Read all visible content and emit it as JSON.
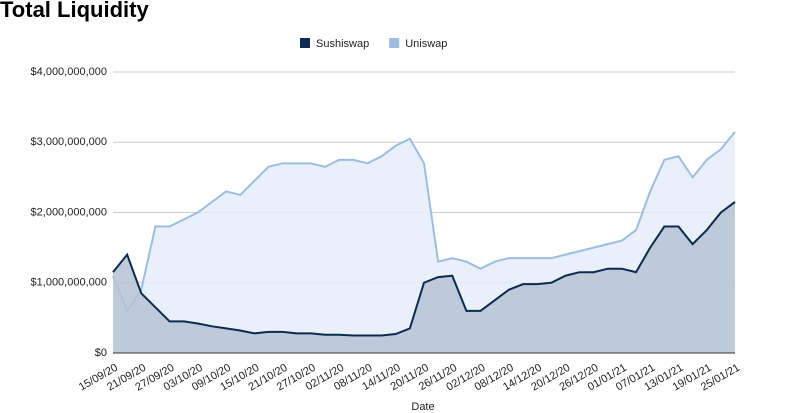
{
  "chart_data": {
    "type": "area",
    "title": "Total Liquidity",
    "x_label": "Date",
    "categories": [
      "15/09/20",
      null,
      "21/09/20",
      null,
      "27/09/20",
      null,
      "03/10/20",
      null,
      "09/10/20",
      null,
      "15/10/20",
      null,
      "21/10/20",
      null,
      "27/10/20",
      null,
      "02/11/20",
      null,
      "08/11/20",
      null,
      "14/11/20",
      null,
      "20/11/20",
      null,
      "26/11/20",
      null,
      "02/12/20",
      null,
      "08/12/20",
      null,
      "14/12/20",
      null,
      "20/12/20",
      null,
      "26/12/20",
      null,
      "01/01/21",
      null,
      "07/01/21",
      null,
      "13/01/21",
      null,
      "19/01/21",
      null,
      "25/01/21"
    ],
    "series": [
      {
        "name": "Sushiswap",
        "color": "#0d2a4f",
        "values": [
          1150000000,
          1400000000,
          850000000,
          650000000,
          450000000,
          450000000,
          420000000,
          380000000,
          350000000,
          320000000,
          280000000,
          300000000,
          300000000,
          280000000,
          280000000,
          260000000,
          260000000,
          250000000,
          250000000,
          250000000,
          270000000,
          350000000,
          1000000000,
          1080000000,
          1100000000,
          600000000,
          600000000,
          750000000,
          900000000,
          980000000,
          980000000,
          1000000000,
          1100000000,
          1150000000,
          1150000000,
          1200000000,
          1200000000,
          1150000000,
          1500000000,
          1800000000,
          1800000000,
          1550000000,
          1750000000,
          2000000000,
          2150000000
        ]
      },
      {
        "name": "Uniswap",
        "color": "#9dbde0",
        "values": [
          1100000000,
          600000000,
          900000000,
          1800000000,
          1800000000,
          1900000000,
          2000000000,
          2150000000,
          2300000000,
          2250000000,
          2450000000,
          2650000000,
          2700000000,
          2700000000,
          2700000000,
          2650000000,
          2750000000,
          2750000000,
          2700000000,
          2800000000,
          2950000000,
          3050000000,
          2700000000,
          1300000000,
          1350000000,
          1300000000,
          1200000000,
          1300000000,
          1350000000,
          1350000000,
          1350000000,
          1350000000,
          1400000000,
          1450000000,
          1500000000,
          1550000000,
          1600000000,
          1750000000,
          2300000000,
          2750000000,
          2800000000,
          2500000000,
          2750000000,
          2900000000,
          3150000000
        ]
      }
    ],
    "ylim": [
      0,
      4000000000
    ],
    "yticks": [
      {
        "value": 0,
        "label": "$0"
      },
      {
        "value": 1000000000,
        "label": "$1,000,000,000"
      },
      {
        "value": 2000000000,
        "label": "$2,000,000,000"
      },
      {
        "value": 3000000000,
        "label": "$3,000,000,000"
      },
      {
        "value": 4000000000,
        "label": "$4,000,000,000"
      }
    ],
    "grid": true,
    "legend": "top"
  }
}
